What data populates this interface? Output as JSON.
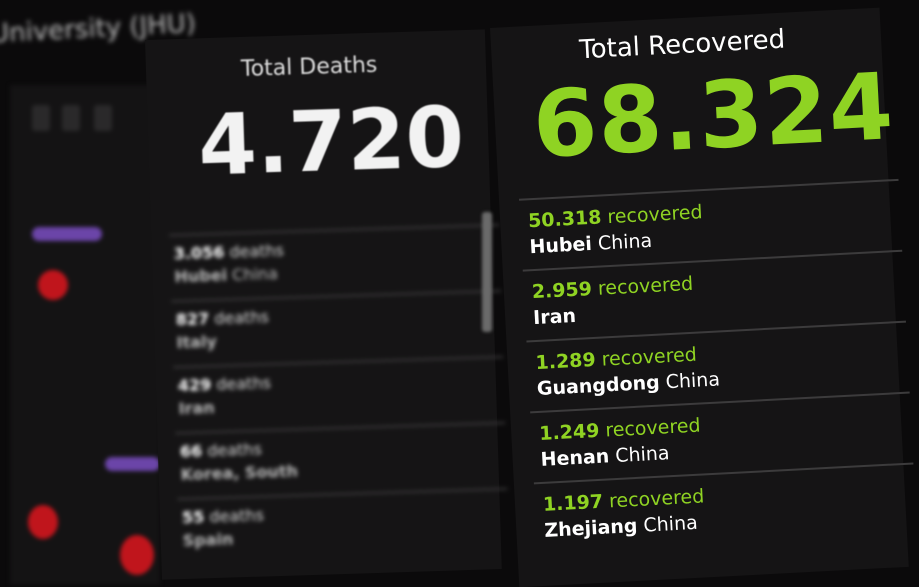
{
  "header": {
    "title": "University (JHU)"
  },
  "colors": {
    "accent_green": "#8fd323",
    "background": "#0b0a0b",
    "map_dot": "#c0151c",
    "map_pill": "#6b45a8"
  },
  "deaths": {
    "title": "Total Deaths",
    "total": "4.720",
    "items": [
      {
        "count": "3.056",
        "unit": "deaths",
        "place": "Hubei",
        "country": "China"
      },
      {
        "count": "827",
        "unit": "deaths",
        "place": "Italy",
        "country": ""
      },
      {
        "count": "429",
        "unit": "deaths",
        "place": "Iran",
        "country": ""
      },
      {
        "count": "66",
        "unit": "deaths",
        "place": "Korea, South",
        "country": ""
      },
      {
        "count": "55",
        "unit": "deaths",
        "place": "Spain",
        "country": ""
      }
    ]
  },
  "recovered": {
    "title": "Total Recovered",
    "total": "68.324",
    "items": [
      {
        "count": "50.318",
        "unit": "recovered",
        "place": "Hubei",
        "country": "China"
      },
      {
        "count": "2.959",
        "unit": "recovered",
        "place": "Iran",
        "country": ""
      },
      {
        "count": "1.289",
        "unit": "recovered",
        "place": "Guangdong",
        "country": "China"
      },
      {
        "count": "1.249",
        "unit": "recovered",
        "place": "Henan",
        "country": "China"
      },
      {
        "count": "1.197",
        "unit": "recovered",
        "place": "Zhejiang",
        "country": "China"
      }
    ]
  }
}
